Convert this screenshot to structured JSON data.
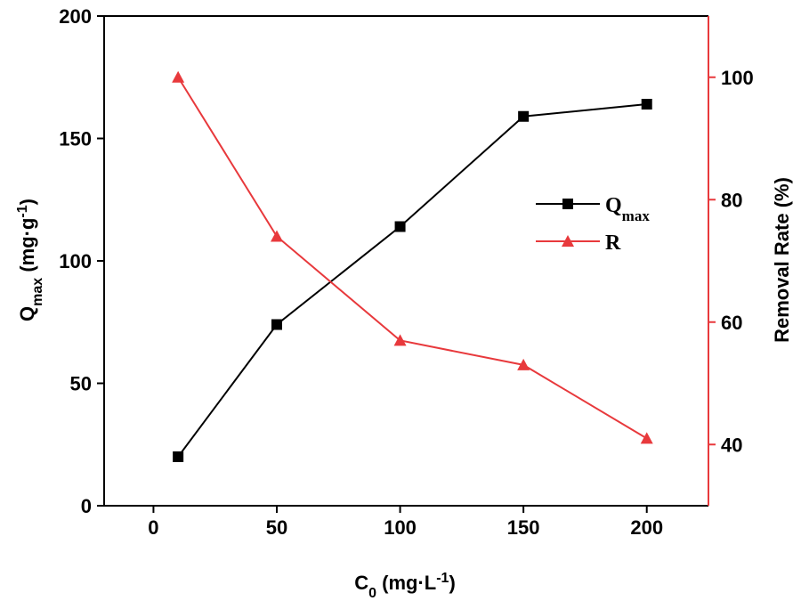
{
  "chart_data": {
    "type": "line",
    "x": [
      10,
      50,
      100,
      150,
      200
    ],
    "xlim": [
      -20,
      225
    ],
    "xticks": [
      0,
      50,
      100,
      150,
      200
    ],
    "xlabel": {
      "main": "C",
      "sub": "0",
      "unit_open": " (mg·L",
      "sup": "-1",
      "unit_close": ")"
    },
    "y_left": {
      "lim": [
        0,
        200
      ],
      "ticks": [
        0,
        50,
        100,
        150,
        200
      ],
      "label": {
        "main": "Q",
        "sub": "max",
        "unit_open": " (mg·g",
        "sup": "-1",
        "unit_close": ")"
      },
      "color": "#000000"
    },
    "y_right": {
      "lim": [
        30,
        110
      ],
      "ticks": [
        40,
        60,
        80,
        100
      ],
      "label": "Removal Rate (%)",
      "color": "#e8393c"
    },
    "series": [
      {
        "name": "Qmax",
        "legend_main": "Q",
        "legend_sub": "max",
        "axis": "left",
        "marker": "square",
        "color": "#000000",
        "values": [
          20,
          74,
          114,
          159,
          164
        ]
      },
      {
        "name": "R",
        "legend_main": "R",
        "legend_sub": "",
        "axis": "right",
        "marker": "triangle",
        "color": "#e8393c",
        "values": [
          100,
          74,
          57,
          53,
          41
        ]
      }
    ],
    "legend_position": "center-right"
  }
}
